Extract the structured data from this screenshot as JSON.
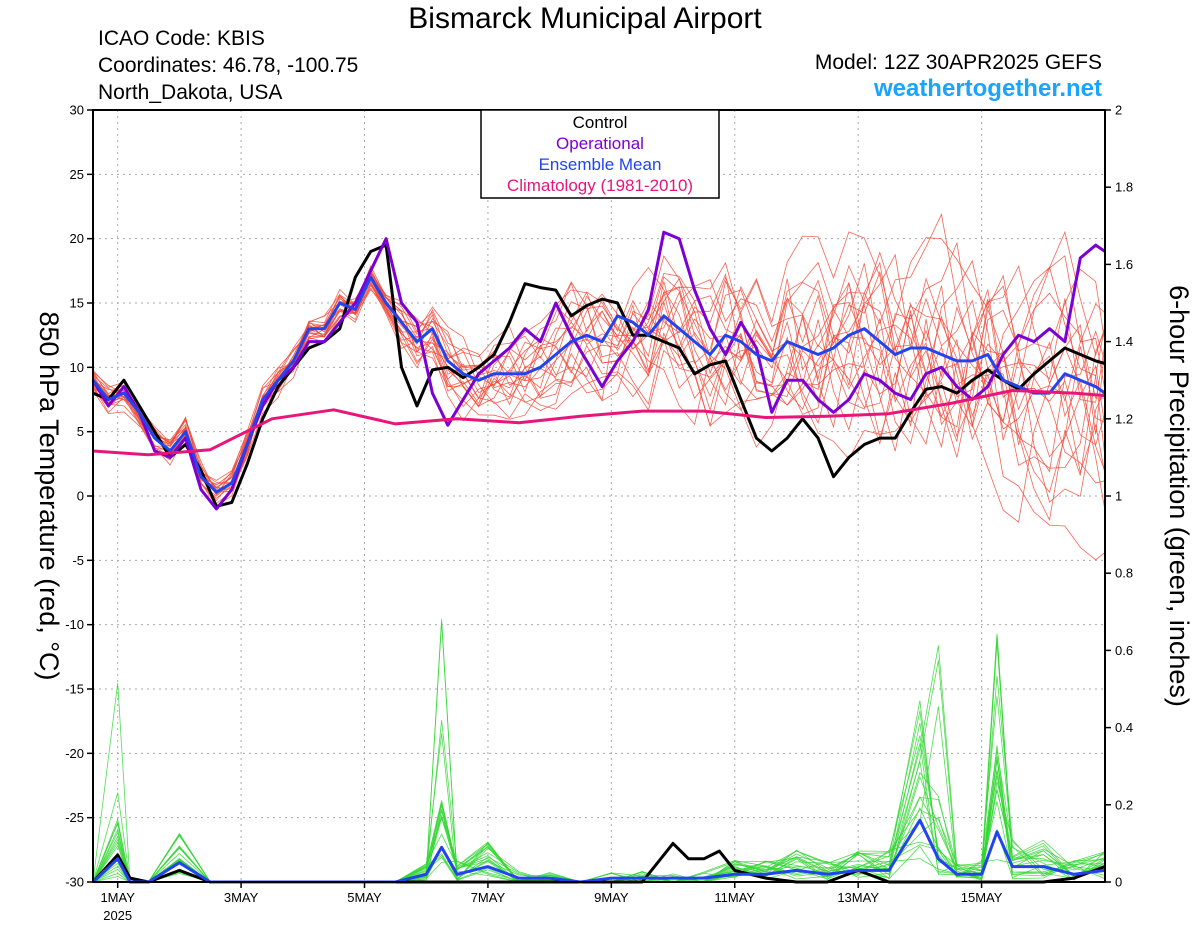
{
  "header": {
    "title": "Bismarck Municipal Airport",
    "icao": "ICAO Code: KBIS",
    "coordinates": "Coordinates: 46.78, -100.75",
    "region": "North_Dakota, USA",
    "model": "Model: 12Z 30APR2025 GEFS",
    "site": "weathertogether.net"
  },
  "colors": {
    "member_temp": "#f04a3a",
    "member_precip": "#33d633",
    "control": "#000000",
    "operational": "#7b00d4",
    "ensemble_mean": "#2244ee",
    "climatology": "#e8157a",
    "grid": "#aaaaaa"
  },
  "chart_data": {
    "type": "line",
    "title": "Bismarck Municipal Airport",
    "ylabel": "850 hPa Temperature (red, °C)",
    "y2label": "6-hour Precipitation (green, inches)",
    "ylim": [
      -30,
      30
    ],
    "y2lim": [
      0,
      2
    ],
    "yticks": [
      "30",
      "25",
      "20",
      "15",
      "10",
      "5",
      "0",
      "-5",
      "-10",
      "-15",
      "-20",
      "-25",
      "-30"
    ],
    "y2ticks": [
      "2",
      "1.8",
      "1.6",
      "1.4",
      "1.2",
      "1",
      "0.8",
      "0.6",
      "0.4",
      "0.2",
      "0"
    ],
    "xlim": [
      0.6,
      17.0
    ],
    "x_units": "days from 30APR2025 00Z",
    "xticks": [
      {
        "x": 1,
        "label": "1MAY",
        "sub": "2025"
      },
      {
        "x": 3,
        "label": "3MAY",
        "sub": ""
      },
      {
        "x": 5,
        "label": "5MAY",
        "sub": ""
      },
      {
        "x": 7,
        "label": "7MAY",
        "sub": ""
      },
      {
        "x": 9,
        "label": "9MAY",
        "sub": ""
      },
      {
        "x": 11,
        "label": "11MAY",
        "sub": ""
      },
      {
        "x": 13,
        "label": "13MAY",
        "sub": ""
      },
      {
        "x": 15,
        "label": "15MAY",
        "sub": ""
      }
    ],
    "grid": true,
    "legend_position": "top-center",
    "legend": [
      "Control",
      "Operational",
      "Ensemble Mean",
      "Climatology (1981-2010)"
    ],
    "series": [
      {
        "name": "Control",
        "axis": "temp",
        "x": [
          0.6,
          0.85,
          1.1,
          1.35,
          1.6,
          1.85,
          2.1,
          2.35,
          2.6,
          2.85,
          3.1,
          3.35,
          3.6,
          3.85,
          4.1,
          4.35,
          4.6,
          4.85,
          5.1,
          5.35,
          5.6,
          5.85,
          6.1,
          6.35,
          6.6,
          6.85,
          7.1,
          7.35,
          7.6,
          7.85,
          8.1,
          8.35,
          8.6,
          8.85,
          9.1,
          9.35,
          9.6,
          9.85,
          10.1,
          10.35,
          10.6,
          10.85,
          11.1,
          11.35,
          11.6,
          11.85,
          12.1,
          12.35,
          12.6,
          12.85,
          13.1,
          13.35,
          13.6,
          13.85,
          14.1,
          14.35,
          14.6,
          14.85,
          15.1,
          15.35,
          15.6,
          15.85,
          16.1,
          16.35,
          16.6,
          16.85,
          17.0
        ],
        "y": [
          8.0,
          7.5,
          9.0,
          7.0,
          5.0,
          3.0,
          4.0,
          2.0,
          -0.8,
          -0.5,
          2.5,
          6.0,
          8.5,
          10.0,
          11.5,
          12.0,
          13.0,
          17.0,
          19.0,
          19.5,
          10.0,
          7.0,
          9.8,
          10.0,
          9.2,
          10.0,
          11.0,
          13.5,
          16.5,
          16.2,
          16.0,
          14.0,
          14.8,
          15.3,
          15.0,
          12.5,
          12.5,
          12.0,
          11.5,
          9.5,
          10.2,
          10.5,
          7.5,
          4.5,
          3.5,
          4.5,
          6.0,
          4.5,
          1.5,
          3.0,
          4.0,
          4.5,
          4.5,
          6.5,
          8.3,
          8.5,
          8.0,
          9.0,
          9.8,
          9.0,
          8.3,
          9.5,
          10.5,
          11.5,
          11.0,
          10.5,
          10.3
        ]
      },
      {
        "name": "Operational",
        "axis": "temp",
        "x": [
          0.6,
          0.85,
          1.1,
          1.35,
          1.6,
          1.85,
          2.1,
          2.35,
          2.6,
          2.85,
          3.1,
          3.35,
          3.6,
          3.85,
          4.1,
          4.35,
          4.6,
          4.85,
          5.1,
          5.35,
          5.6,
          5.85,
          6.1,
          6.35,
          6.6,
          6.85,
          7.1,
          7.35,
          7.6,
          7.85,
          8.1,
          8.35,
          8.6,
          8.85,
          9.1,
          9.35,
          9.6,
          9.85,
          10.1,
          10.35,
          10.6,
          10.85,
          11.1,
          11.35,
          11.6,
          11.85,
          12.1,
          12.35,
          12.6,
          12.85,
          13.1,
          13.35,
          13.6,
          13.85,
          14.1,
          14.35,
          14.6,
          14.85,
          15.1,
          15.35,
          15.6,
          15.85,
          16.1,
          16.35,
          16.6,
          16.85,
          17.0
        ],
        "y": [
          9.0,
          7.0,
          8.5,
          6.5,
          3.5,
          3.0,
          4.5,
          0.5,
          -1.0,
          0.5,
          4.0,
          7.0,
          9.0,
          10.0,
          12.0,
          12.0,
          13.5,
          15.0,
          17.5,
          20.0,
          15.0,
          13.5,
          8.0,
          5.5,
          7.5,
          9.5,
          10.5,
          11.5,
          13.0,
          12.0,
          15.0,
          12.5,
          10.5,
          8.5,
          10.5,
          12.0,
          14.5,
          20.5,
          20.0,
          16.0,
          13.0,
          11.0,
          13.5,
          11.5,
          6.5,
          9.0,
          9.0,
          7.5,
          6.5,
          7.5,
          9.5,
          9.0,
          8.0,
          7.5,
          9.5,
          10.0,
          8.5,
          7.5,
          8.5,
          11.0,
          12.5,
          12.0,
          13.0,
          12.0,
          18.5,
          19.5,
          19.0
        ]
      },
      {
        "name": "Ensemble Mean",
        "axis": "temp",
        "x": [
          0.6,
          0.85,
          1.1,
          1.35,
          1.6,
          1.85,
          2.1,
          2.35,
          2.6,
          2.85,
          3.1,
          3.35,
          3.6,
          3.85,
          4.1,
          4.35,
          4.6,
          4.85,
          5.1,
          5.35,
          5.6,
          5.85,
          6.1,
          6.35,
          6.6,
          6.85,
          7.1,
          7.35,
          7.6,
          7.85,
          8.1,
          8.35,
          8.6,
          8.85,
          9.1,
          9.35,
          9.6,
          9.85,
          10.1,
          10.35,
          10.6,
          10.85,
          11.1,
          11.35,
          11.6,
          11.85,
          12.1,
          12.35,
          12.6,
          12.85,
          13.1,
          13.35,
          13.6,
          13.85,
          14.1,
          14.35,
          14.6,
          14.85,
          15.1,
          15.35,
          15.6,
          15.85,
          16.1,
          16.35,
          16.6,
          16.85,
          17.0
        ],
        "y": [
          9.0,
          7.5,
          8.0,
          6.5,
          4.5,
          3.5,
          5.0,
          1.5,
          0.3,
          1.0,
          4.0,
          7.5,
          9.0,
          10.5,
          13.0,
          13.0,
          15.0,
          14.5,
          17.0,
          15.0,
          13.5,
          12.0,
          13.0,
          10.5,
          9.5,
          9.0,
          9.5,
          9.5,
          9.5,
          10.0,
          11.0,
          12.0,
          12.5,
          12.0,
          14.0,
          13.5,
          12.5,
          14.0,
          13.0,
          12.0,
          11.0,
          12.5,
          12.0,
          11.0,
          10.5,
          12.0,
          11.5,
          11.0,
          11.5,
          12.5,
          13.0,
          12.0,
          11.0,
          11.5,
          11.5,
          11.0,
          10.5,
          10.5,
          11.0,
          9.0,
          8.5,
          8.0,
          8.0,
          9.5,
          9.0,
          8.5,
          8.0
        ]
      },
      {
        "name": "Climatology (1981-2010)",
        "axis": "temp",
        "x": [
          0.6,
          1.5,
          2.5,
          3.5,
          4.5,
          5.5,
          6.5,
          7.5,
          8.5,
          9.5,
          10.5,
          11.5,
          12.5,
          13.5,
          14.5,
          15.5,
          16.5,
          17.0
        ],
        "y": [
          3.5,
          3.2,
          3.6,
          6.0,
          6.7,
          5.6,
          6.0,
          5.7,
          6.2,
          6.6,
          6.6,
          6.1,
          6.2,
          6.4,
          7.2,
          8.2,
          8.0,
          7.8
        ]
      },
      {
        "name": "Control",
        "axis": "precip",
        "x": [
          0.6,
          1.0,
          1.2,
          1.5,
          2.0,
          2.5,
          3.0,
          3.5,
          4.0,
          4.5,
          5.0,
          5.5,
          6.0,
          6.5,
          7.0,
          7.5,
          8.0,
          8.5,
          9.0,
          9.5,
          10.0,
          10.25,
          10.5,
          10.75,
          11.0,
          11.5,
          12.0,
          12.5,
          13.0,
          13.5,
          14.0,
          14.5,
          15.0,
          15.5,
          16.0,
          16.5,
          17.0
        ],
        "y": [
          0.0,
          0.07,
          0.01,
          0.0,
          0.03,
          0.0,
          0.0,
          0.0,
          0.0,
          0.0,
          0.0,
          0.0,
          0.0,
          0.0,
          0.0,
          0.0,
          0.0,
          0.0,
          0.0,
          0.0,
          0.1,
          0.06,
          0.06,
          0.08,
          0.03,
          0.01,
          0.0,
          0.0,
          0.03,
          0.0,
          0.0,
          0.0,
          0.0,
          0.0,
          0.0,
          0.01,
          0.04
        ]
      },
      {
        "name": "Ensemble Mean",
        "axis": "precip",
        "x": [
          0.6,
          1.0,
          1.2,
          1.5,
          2.0,
          2.5,
          3.0,
          3.5,
          4.0,
          4.5,
          5.0,
          5.5,
          6.0,
          6.25,
          6.5,
          7.0,
          7.5,
          8.0,
          8.5,
          9.0,
          9.5,
          10.0,
          10.5,
          11.0,
          11.5,
          12.0,
          12.5,
          13.0,
          13.5,
          14.0,
          14.3,
          14.6,
          15.0,
          15.25,
          15.5,
          16.0,
          16.5,
          17.0
        ],
        "y": [
          0.0,
          0.06,
          0.0,
          0.0,
          0.05,
          0.0,
          0.0,
          0.0,
          0.0,
          0.0,
          0.0,
          0.0,
          0.02,
          0.09,
          0.02,
          0.04,
          0.01,
          0.01,
          0.0,
          0.01,
          0.01,
          0.01,
          0.01,
          0.02,
          0.02,
          0.03,
          0.02,
          0.03,
          0.03,
          0.16,
          0.06,
          0.02,
          0.02,
          0.13,
          0.04,
          0.04,
          0.02,
          0.03
        ]
      }
    ]
  }
}
